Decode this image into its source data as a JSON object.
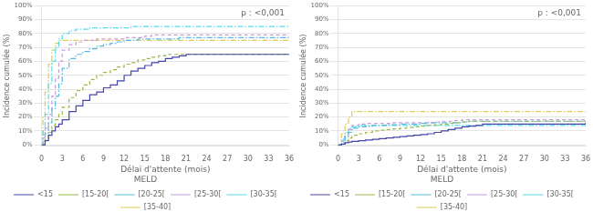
{
  "chart_data": [
    {
      "type": "line",
      "line_style": "step",
      "annotation": "p : <0,001",
      "xlabel": "Délai d'attente (mois)",
      "ylabel": "Incidence cumulée (%)",
      "xlim": [
        0,
        36
      ],
      "ylim": [
        -1,
        100
      ],
      "xticks": [
        0,
        3,
        6,
        9,
        12,
        15,
        18,
        21,
        24,
        27,
        30,
        33,
        36
      ],
      "yticks": [
        {
          "value": 0,
          "label": "0%"
        },
        {
          "value": 10,
          "label": "10%"
        },
        {
          "value": 20,
          "label": "20%"
        },
        {
          "value": 30,
          "label": "30%"
        },
        {
          "value": 40,
          "label": "40%"
        },
        {
          "value": 50,
          "label": "50%"
        },
        {
          "value": 60,
          "label": "60%"
        },
        {
          "value": 70,
          "label": "70%"
        },
        {
          "value": 80,
          "label": "80%"
        },
        {
          "value": 90,
          "label": "90%"
        },
        {
          "value": 100,
          "label": "100%"
        }
      ],
      "grid": "y",
      "legend": "bottom",
      "legend_title": "MELD",
      "series": [
        {
          "name": "<15",
          "color": "#4444aa",
          "line_style": "solid",
          "x": [
            0,
            0.2,
            0.5,
            1,
            1.5,
            2,
            2.5,
            3,
            4,
            5,
            6,
            7,
            8,
            9,
            10,
            11,
            12,
            13,
            14,
            15,
            16,
            17,
            18,
            19,
            20,
            21,
            21.5,
            24,
            36
          ],
          "values": [
            0,
            0,
            3,
            7,
            10,
            13,
            15,
            18,
            24,
            28,
            32,
            36,
            38,
            41,
            43,
            46,
            50,
            53,
            55,
            57,
            59,
            60,
            62,
            63,
            64,
            65,
            65,
            65,
            65
          ]
        },
        {
          "name": "[15-20[",
          "color": "#99bb44",
          "line_style": "dashed",
          "x": [
            0,
            0.2,
            0.5,
            1,
            1.5,
            2,
            2.5,
            3,
            4,
            5,
            6,
            7,
            8,
            9,
            10,
            11,
            12,
            13,
            14,
            15,
            16,
            17,
            18,
            19,
            20,
            21,
            24,
            36
          ],
          "values": [
            0,
            0,
            4,
            9,
            14,
            18,
            22,
            27,
            34,
            39,
            43,
            47,
            50,
            52,
            54,
            56,
            58,
            59,
            61,
            62,
            63,
            64,
            65,
            65,
            65,
            65,
            65,
            65
          ]
        },
        {
          "name": "[20-25[",
          "color": "#55bbdd",
          "line_style": "dashdot",
          "x": [
            0,
            0.2,
            0.5,
            1,
            1.5,
            2,
            2.5,
            3,
            4,
            5,
            6,
            7,
            8,
            9,
            10,
            11,
            12,
            13,
            14,
            15,
            16,
            17,
            18,
            19,
            20,
            21,
            24,
            36
          ],
          "values": [
            0,
            0,
            8,
            16,
            26,
            35,
            44,
            55,
            62,
            65,
            67,
            69,
            71,
            72,
            73,
            74,
            75,
            75,
            76,
            76,
            76,
            76,
            76,
            76,
            77,
            77,
            77,
            77
          ]
        },
        {
          "name": "[25-30[",
          "color": "#cc99dd",
          "line_style": "dashed",
          "x": [
            0,
            0.2,
            0.5,
            1,
            1.5,
            2,
            2.5,
            3,
            4,
            5,
            6,
            7,
            8,
            9,
            10,
            11,
            12,
            13,
            14,
            15,
            16,
            17,
            18,
            19,
            20,
            21,
            24,
            36
          ],
          "values": [
            0,
            5,
            12,
            22,
            35,
            48,
            60,
            68,
            72,
            74,
            75,
            75,
            76,
            76,
            76,
            76,
            77,
            77,
            77,
            78,
            79,
            79,
            79,
            79,
            79,
            79,
            79,
            79
          ]
        },
        {
          "name": "[30-35[",
          "color": "#55ddee",
          "line_style": "dashdot",
          "x": [
            0,
            0.2,
            0.5,
            1,
            1.5,
            2,
            2.5,
            3,
            4,
            5,
            6,
            7,
            8,
            9,
            10,
            11,
            12,
            13,
            14,
            15,
            16,
            17,
            18,
            19,
            20,
            21,
            24,
            36
          ],
          "values": [
            0,
            10,
            22,
            44,
            60,
            70,
            76,
            80,
            82,
            83,
            83,
            84,
            84,
            84,
            84,
            84,
            84,
            85,
            85,
            85,
            85,
            85,
            85,
            85,
            85,
            85,
            85,
            85
          ]
        },
        {
          "name": "[35-40]",
          "color": "#ddcc55",
          "line_style": "dashdot",
          "x": [
            0,
            0.2,
            0.5,
            1,
            1.5,
            2,
            2.5,
            3,
            4,
            5,
            6,
            7,
            8,
            9,
            10,
            11,
            12,
            13,
            14,
            15,
            16,
            17,
            18,
            19,
            20,
            21,
            24,
            36
          ],
          "values": [
            0,
            20,
            38,
            58,
            68,
            73,
            75,
            75,
            75,
            75,
            75,
            75,
            75,
            75,
            75,
            75,
            75,
            75,
            75,
            75,
            75,
            75,
            75,
            75,
            75,
            75,
            75,
            75
          ]
        }
      ]
    },
    {
      "type": "line",
      "line_style": "step",
      "annotation": "p : <0,001",
      "xlabel": "Délai d'attente (mois)",
      "ylabel": "Incidence cumulée (%)",
      "xlim": [
        0,
        36
      ],
      "ylim": [
        -1,
        100
      ],
      "xticks": [
        0,
        3,
        6,
        9,
        12,
        15,
        18,
        21,
        24,
        27,
        30,
        33,
        36
      ],
      "yticks": [
        {
          "value": 0,
          "label": "0%"
        },
        {
          "value": 10,
          "label": "10%"
        },
        {
          "value": 20,
          "label": "20%"
        },
        {
          "value": 30,
          "label": "30%"
        },
        {
          "value": 40,
          "label": "40%"
        },
        {
          "value": 50,
          "label": "50%"
        },
        {
          "value": 60,
          "label": "60%"
        },
        {
          "value": 70,
          "label": "70%"
        },
        {
          "value": 80,
          "label": "80%"
        },
        {
          "value": 90,
          "label": "90%"
        },
        {
          "value": 100,
          "label": "100%"
        }
      ],
      "grid": "y",
      "legend": "bottom",
      "legend_title": "MELD",
      "series": [
        {
          "name": "<15",
          "color": "#4444aa",
          "line_style": "solid",
          "x": [
            0,
            0.5,
            1,
            1.5,
            2,
            3,
            4,
            5,
            6,
            7,
            8,
            9,
            10,
            11,
            12,
            13,
            14,
            15,
            16,
            17,
            18,
            19,
            20,
            21,
            21.5,
            24,
            36
          ],
          "values": [
            0,
            0.5,
            1.5,
            2,
            2.5,
            3,
            3.5,
            4,
            4.5,
            5,
            5.5,
            6,
            6.5,
            7,
            7.5,
            8,
            9,
            10,
            11,
            12,
            13,
            13.5,
            14,
            15,
            15,
            15,
            16
          ]
        },
        {
          "name": "[15-20[",
          "color": "#99bb44",
          "line_style": "dashed",
          "x": [
            0,
            0.5,
            1,
            1.5,
            2,
            3,
            4,
            5,
            6,
            7,
            8,
            9,
            10,
            11,
            12,
            13,
            14,
            15,
            16,
            17,
            18,
            19,
            20,
            21,
            24,
            36
          ],
          "values": [
            0,
            1,
            3,
            5,
            7,
            8,
            9,
            10,
            10.5,
            11,
            11.5,
            12,
            12.5,
            13,
            13.5,
            14,
            14.5,
            15,
            15.5,
            16,
            16.5,
            17,
            17,
            17,
            17,
            17
          ]
        },
        {
          "name": "[20-25[",
          "color": "#55bbdd",
          "line_style": "dashdot",
          "x": [
            0,
            0.5,
            1,
            1.5,
            2,
            3,
            4,
            5,
            6,
            7,
            8,
            9,
            10,
            11,
            12,
            13,
            14,
            15,
            16,
            17,
            18,
            19,
            20,
            21,
            24,
            36
          ],
          "values": [
            0,
            2,
            6,
            9,
            12,
            13,
            13.5,
            14,
            14,
            14.5,
            14.5,
            15,
            15,
            15,
            15.5,
            16,
            16,
            16,
            16,
            16,
            16.5,
            17,
            17,
            17,
            17,
            17
          ]
        },
        {
          "name": "[25-30[",
          "color": "#cc99dd",
          "line_style": "dashed",
          "x": [
            0,
            0.5,
            1,
            1.5,
            2,
            3,
            4,
            5,
            6,
            7,
            8,
            9,
            10,
            11,
            12,
            13,
            14,
            15,
            16,
            17,
            18,
            19,
            20,
            21,
            24,
            36
          ],
          "values": [
            0,
            3,
            7,
            11,
            14,
            15,
            15.5,
            15.5,
            15.5,
            15.5,
            16,
            16,
            16,
            16,
            16,
            16,
            16.5,
            17,
            17,
            17.5,
            18,
            18,
            18,
            18,
            18,
            18
          ]
        },
        {
          "name": "[30-35[",
          "color": "#55ddee",
          "line_style": "dashdot",
          "x": [
            0,
            0.5,
            1,
            1.5,
            2,
            3,
            4,
            5,
            6,
            7,
            8,
            9,
            10,
            11,
            12,
            13,
            14,
            15,
            16,
            17,
            18,
            19,
            20,
            21,
            24,
            36
          ],
          "values": [
            0,
            4,
            9,
            12,
            13,
            14,
            14,
            14,
            14,
            14,
            14,
            14,
            14,
            14,
            14,
            14,
            14,
            14,
            14,
            14,
            14,
            14,
            14,
            14,
            14,
            14
          ]
        },
        {
          "name": "[35-40]",
          "color": "#ddcc55",
          "line_style": "dashdot",
          "x": [
            0,
            0.5,
            1,
            1.5,
            2,
            3,
            4,
            5,
            6,
            7,
            8,
            9,
            10,
            11,
            12,
            13,
            14,
            15,
            16,
            17,
            18,
            19,
            20,
            21,
            24,
            36
          ],
          "values": [
            0,
            8,
            15,
            20,
            24,
            24,
            24,
            24,
            24,
            24,
            24,
            24,
            24,
            24,
            24,
            24,
            24,
            24,
            24,
            24,
            24,
            24,
            24,
            24,
            24,
            24
          ]
        }
      ]
    }
  ]
}
